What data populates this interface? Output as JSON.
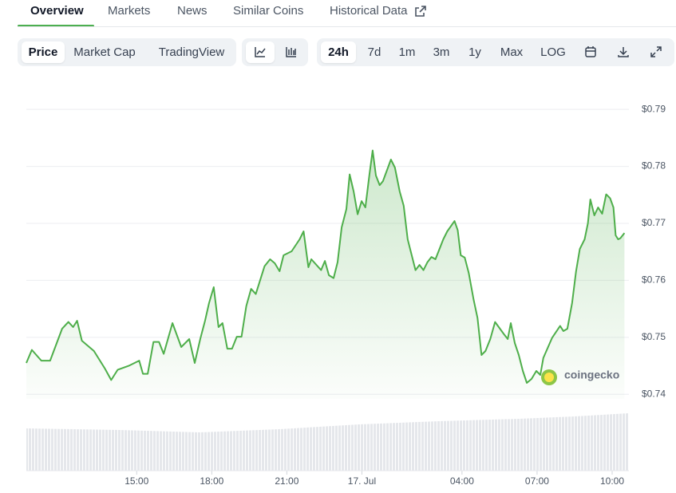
{
  "tabs": [
    "Overview",
    "Markets",
    "News",
    "Similar Coins",
    "Historical Data"
  ],
  "toolbar": {
    "views": [
      "Price",
      "Market Cap",
      "TradingView"
    ],
    "ranges": [
      "24h",
      "7d",
      "1m",
      "3m",
      "1y",
      "Max",
      "LOG"
    ]
  },
  "watermark": "coingecko",
  "chart_data": {
    "type": "line",
    "x": [
      10.59,
      10.81,
      11.19,
      11.54,
      12.02,
      12.27,
      12.46,
      12.62,
      12.81,
      13.29,
      13.73,
      13.98,
      14.24,
      14.68,
      15.1,
      15.25,
      15.44,
      15.67,
      15.89,
      16.08,
      16.43,
      16.78,
      17.1,
      17.32,
      17.54,
      17.73,
      17.89,
      18.08,
      18.27,
      18.43,
      18.62,
      18.81,
      19.0,
      19.19,
      19.38,
      19.57,
      19.76,
      20.11,
      20.33,
      20.52,
      20.71,
      20.87,
      21.19,
      21.51,
      21.67,
      21.86,
      21.98,
      22.37,
      22.52,
      22.68,
      22.87,
      23.03,
      23.19,
      23.38,
      23.51,
      23.67,
      23.83,
      23.99,
      24.14,
      24.3,
      24.43,
      24.56,
      24.71,
      24.84,
      25.16,
      25.32,
      25.51,
      25.67,
      25.83,
      26.14,
      26.3,
      26.46,
      26.62,
      26.78,
      26.94,
      27.25,
      27.41,
      27.7,
      27.83,
      27.95,
      28.11,
      28.27,
      28.46,
      28.62,
      28.78,
      28.94,
      29.13,
      29.32,
      29.67,
      29.83,
      29.95,
      30.11,
      30.27,
      30.43,
      30.59,
      30.78,
      30.97,
      31.13,
      31.25,
      31.6,
      31.92,
      32.05,
      32.21,
      32.4,
      32.56,
      32.71,
      32.9,
      33.03,
      33.13,
      33.29,
      33.44,
      33.6,
      33.76,
      33.92,
      34.05,
      34.14,
      34.24,
      34.33,
      34.49
    ],
    "series": [
      {
        "color": "#4eae4a",
        "values": [
          0.7455,
          0.7478,
          0.7459,
          0.7459,
          0.7515,
          0.7527,
          0.7518,
          0.7529,
          0.7494,
          0.7476,
          0.7445,
          0.7425,
          0.7443,
          0.745,
          0.7459,
          0.7436,
          0.7436,
          0.7492,
          0.7492,
          0.7471,
          0.7525,
          0.7483,
          0.7497,
          0.7455,
          0.7497,
          0.7529,
          0.756,
          0.7588,
          0.7518,
          0.7525,
          0.748,
          0.748,
          0.7501,
          0.7501,
          0.7555,
          0.7585,
          0.7576,
          0.7625,
          0.7637,
          0.763,
          0.7616,
          0.7644,
          0.7651,
          0.7672,
          0.7686,
          0.7623,
          0.7637,
          0.7618,
          0.7634,
          0.7609,
          0.7604,
          0.7632,
          0.7693,
          0.7725,
          0.7786,
          0.7756,
          0.7716,
          0.7739,
          0.7728,
          0.7786,
          0.7828,
          0.7784,
          0.7767,
          0.7774,
          0.7812,
          0.7798,
          0.7756,
          0.7731,
          0.7672,
          0.7618,
          0.7627,
          0.7618,
          0.7632,
          0.7641,
          0.7637,
          0.7672,
          0.7686,
          0.7704,
          0.7688,
          0.7644,
          0.764,
          0.7613,
          0.7567,
          0.7534,
          0.7469,
          0.7476,
          0.7497,
          0.7527,
          0.7506,
          0.7497,
          0.7525,
          0.749,
          0.7469,
          0.7441,
          0.742,
          0.7427,
          0.7441,
          0.7434,
          0.7464,
          0.7499,
          0.752,
          0.7511,
          0.7515,
          0.756,
          0.7616,
          0.7655,
          0.7672,
          0.77,
          0.7742,
          0.7714,
          0.7728,
          0.7717,
          0.7751,
          0.7744,
          0.7728,
          0.7679,
          0.7672,
          0.7674,
          0.7683
        ]
      }
    ],
    "xlim": [
      10.59,
      34.67
    ],
    "xticks": [
      {
        "value": 15,
        "label": "15:00"
      },
      {
        "value": 18,
        "label": "18:00"
      },
      {
        "value": 21,
        "label": "21:00"
      },
      {
        "value": 24,
        "label": "17. Jul"
      },
      {
        "value": 28,
        "label": "04:00"
      },
      {
        "value": 31,
        "label": "07:00"
      },
      {
        "value": 34,
        "label": "10:00"
      }
    ],
    "ylim": [
      0.7392,
      0.7952
    ],
    "yticks": [
      {
        "value": 0.79,
        "label": "$0.79"
      },
      {
        "value": 0.78,
        "label": "$0.78"
      },
      {
        "value": 0.77,
        "label": "$0.77"
      },
      {
        "value": 0.76,
        "label": "$0.76"
      },
      {
        "value": 0.75,
        "label": "$0.75"
      },
      {
        "value": 0.74,
        "label": "$0.74"
      }
    ],
    "grid": true
  }
}
